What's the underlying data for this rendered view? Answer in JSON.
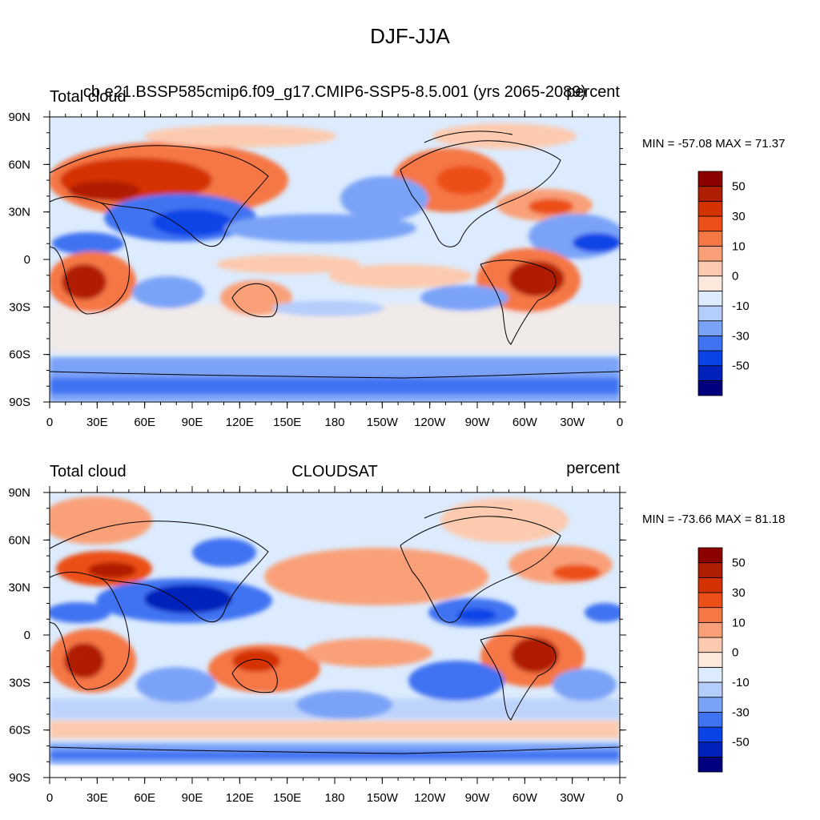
{
  "figure": {
    "title": "DJF-JJA"
  },
  "panels": [
    {
      "left_label": "Total cloud",
      "center_label": "cb e21.BSSP585cmip6.f09_g17.CMIP6-SSP5-8.5.001 (yrs 2065-2089)",
      "right_label": "percent",
      "stats": "MIN = -57.08 MAX =  71.37"
    },
    {
      "left_label": "Total cloud",
      "center_label": "CLOUDSAT",
      "right_label": "percent",
      "stats": "MIN = -73.66 MAX =  81.18"
    }
  ],
  "colorbar": {
    "labels": [
      "50",
      "30",
      "10",
      "0",
      "-10",
      "-30",
      "-50"
    ],
    "colors": [
      "#00007f",
      "#0022bb",
      "#0a44e6",
      "#3f73f2",
      "#7aa3f7",
      "#b5cdfb",
      "#dcebfd",
      "#fde9dc",
      "#fccaaf",
      "#f9a078",
      "#f57744",
      "#ec4f17",
      "#d43203",
      "#b01e02",
      "#8c0000"
    ]
  },
  "chart_data": [
    {
      "type": "heatmap",
      "title": "DJF-JJA",
      "variable": "Total cloud",
      "units": "percent",
      "dataset": "cb e21.BSSP585cmip6.f09_g17.CMIP6-SSP5-8.5.001 (yrs 2065-2089)",
      "x_ticks": [
        "0",
        "30E",
        "60E",
        "90E",
        "120E",
        "150E",
        "180",
        "150W",
        "120W",
        "90W",
        "60W",
        "30W",
        "0"
      ],
      "y_ticks": [
        "90N",
        "60N",
        "30N",
        "0",
        "30S",
        "60S",
        "90S"
      ],
      "xlim": [
        0,
        360
      ],
      "ylim": [
        -90,
        90
      ],
      "min": -57.08,
      "max": 71.37,
      "contour_levels": [
        -60,
        -50,
        -40,
        -30,
        -20,
        -10,
        -5,
        0,
        5,
        10,
        20,
        30,
        40,
        50,
        60
      ]
    },
    {
      "type": "heatmap",
      "title": "DJF-JJA",
      "variable": "Total cloud",
      "units": "percent",
      "dataset": "CLOUDSAT",
      "x_ticks": [
        "0",
        "30E",
        "60E",
        "90E",
        "120E",
        "150E",
        "180",
        "150W",
        "120W",
        "90W",
        "60W",
        "30W",
        "0"
      ],
      "y_ticks": [
        "90N",
        "60N",
        "30N",
        "0",
        "30S",
        "60S",
        "90S"
      ],
      "xlim": [
        0,
        360
      ],
      "ylim": [
        -90,
        90
      ],
      "min": -73.66,
      "max": 81.18,
      "contour_levels": [
        -60,
        -50,
        -40,
        -30,
        -20,
        -10,
        -5,
        0,
        5,
        10,
        20,
        30,
        40,
        50,
        60
      ]
    }
  ]
}
